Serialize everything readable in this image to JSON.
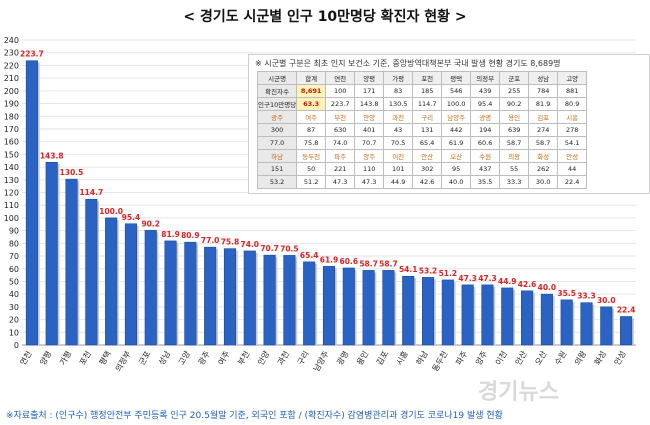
{
  "title": "< 경기도 시군별 인구 10만명당 확진자 현황 >",
  "footer": "※자료출처 : (인구수) 행정안전부 주민등록 인구 20.5월말 기준, 외국인 포함 / (확진자수) 감염병관리과 경기도 코로나19 발생 현황",
  "watermark": "경기뉴스",
  "infobox": {
    "note": "※ 시군별 구분은 최초 인지 보건소 기준, 중앙방역대책본부 국내 발생 현황 경기도 8,689명",
    "table": [
      [
        "시군명",
        "합계",
        "연천",
        "양평",
        "가평",
        "포천",
        "평택",
        "의정부",
        "군포",
        "성남",
        "고양"
      ],
      [
        "확진자수",
        "8,691",
        "100",
        "171",
        "83",
        "185",
        "546",
        "439",
        "255",
        "784",
        "881"
      ],
      [
        "인구10만명당",
        "63.3",
        "223.7",
        "143.8",
        "130.5",
        "114.7",
        "100.0",
        "95.4",
        "90.2",
        "81.9",
        "80.9"
      ],
      [
        "광주",
        "여주",
        "부천",
        "안양",
        "과천",
        "구리",
        "남양주",
        "광명",
        "용인",
        "김포",
        "시흥"
      ],
      [
        "300",
        "87",
        "630",
        "401",
        "43",
        "131",
        "442",
        "194",
        "639",
        "274",
        "278"
      ],
      [
        "77.0",
        "75.8",
        "74.0",
        "70.7",
        "70.5",
        "65.4",
        "61.9",
        "60.6",
        "58.7",
        "58.7",
        "54.1"
      ],
      [
        "하남",
        "동두천",
        "파주",
        "양주",
        "이천",
        "안산",
        "오산",
        "수원",
        "의왕",
        "화성",
        "안성"
      ],
      [
        "151",
        "50",
        "221",
        "110",
        "101",
        "302",
        "95",
        "437",
        "55",
        "262",
        "44"
      ],
      [
        "53.2",
        "51.2",
        "47.3",
        "47.3",
        "44.9",
        "42.6",
        "40.0",
        "35.5",
        "33.3",
        "30.0",
        "22.4"
      ]
    ]
  },
  "colors": {
    "bar": "#2b63c4",
    "bar_dark": "#1c4a9a",
    "value_label": "#e02020",
    "grid": "#e6e6e6",
    "axis_text": "#222222"
  },
  "chart_data": {
    "type": "bar",
    "title": "< 경기도 시군별 인구 10만명당 확진자 현황 >",
    "categories": [
      "연천",
      "양평",
      "가평",
      "포천",
      "평택",
      "의정부",
      "군포",
      "성남",
      "고양",
      "광주",
      "여주",
      "부천",
      "안양",
      "과천",
      "구리",
      "남양주",
      "광명",
      "용인",
      "김포",
      "시흥",
      "하남",
      "동두천",
      "파주",
      "양주",
      "이천",
      "안산",
      "오산",
      "수원",
      "의왕",
      "화성",
      "안성"
    ],
    "values": [
      223.7,
      143.8,
      130.5,
      114.7,
      100.0,
      95.4,
      90.2,
      81.9,
      80.9,
      77.0,
      75.8,
      74.0,
      70.7,
      70.5,
      65.4,
      61.9,
      60.6,
      58.7,
      58.7,
      54.1,
      53.2,
      51.2,
      47.3,
      47.3,
      44.9,
      42.6,
      40.0,
      35.5,
      33.3,
      30.0,
      22.4
    ],
    "ylim": [
      0,
      240
    ],
    "yticks": [
      0,
      10,
      20,
      30,
      40,
      50,
      60,
      70,
      80,
      90,
      100,
      110,
      120,
      130,
      140,
      150,
      160,
      170,
      180,
      190,
      200,
      210,
      220,
      230,
      240
    ],
    "xlabel": "",
    "ylabel": "",
    "grid": true
  }
}
